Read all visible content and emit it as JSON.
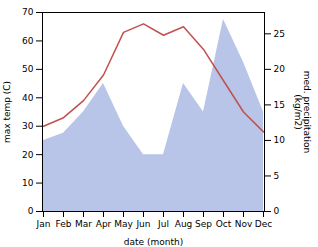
{
  "chart_data": {
    "type": "line",
    "categories": [
      "Jan",
      "Feb",
      "Mar",
      "Apr",
      "May",
      "Jun",
      "Jul",
      "Aug",
      "Sep",
      "Oct",
      "Nov",
      "Dec"
    ],
    "series": [
      {
        "type": "area",
        "axis": "y2",
        "color": "#b8c4e8",
        "values": [
          10,
          11,
          14,
          18,
          12,
          8,
          8,
          18,
          14,
          27,
          21,
          14
        ]
      },
      {
        "type": "line",
        "color": "#c0504d",
        "values": [
          30,
          33,
          39,
          48,
          63,
          66,
          62,
          65,
          57,
          46,
          35,
          28
        ]
      }
    ],
    "xlabel": "date (month)",
    "ylabel": "max temp (C)",
    "y2label": "med. precipitation\n(kg/m2)",
    "ylim": [
      0,
      70
    ],
    "yticks": [
      0,
      10,
      20,
      30,
      40,
      50,
      60,
      70
    ],
    "y2lim": [
      0,
      28
    ],
    "y2ticks": [
      0,
      5,
      10,
      15,
      20,
      25
    ]
  }
}
